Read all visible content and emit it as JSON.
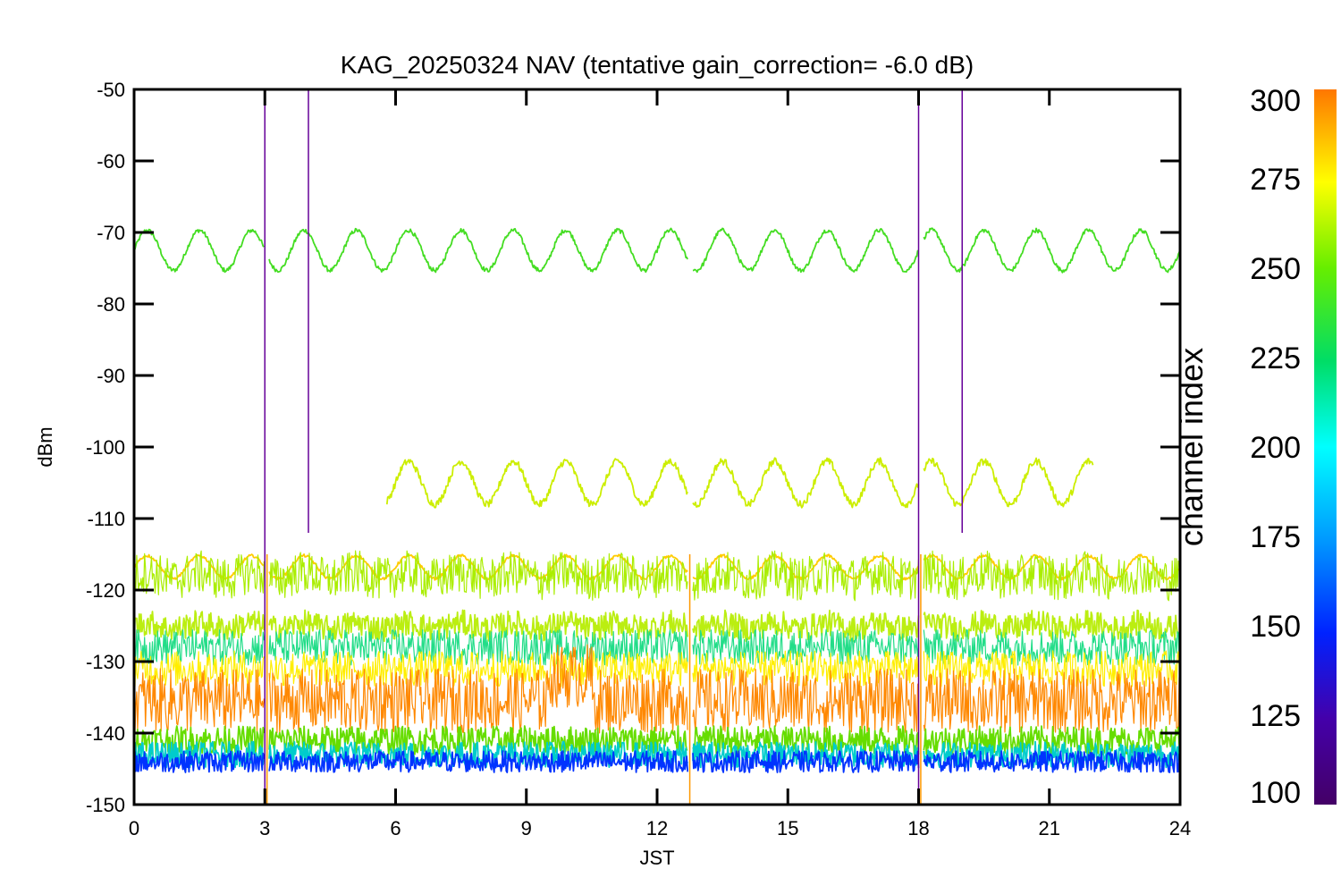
{
  "chart_data": {
    "type": "line",
    "title": "KAG_20250324 NAV (tentative gain_correction= -6.0 dB)",
    "xlabel": "JST",
    "ylabel": "dBm",
    "xlim": [
      0,
      24
    ],
    "ylim": [
      -150,
      -50
    ],
    "xticks": [
      0,
      3,
      6,
      9,
      12,
      15,
      18,
      21,
      24
    ],
    "yticks": [
      -50,
      -60,
      -70,
      -80,
      -90,
      -100,
      -110,
      -120,
      -130,
      -140,
      -150
    ],
    "grid": false,
    "legend": "none",
    "colorbar": {
      "title": "channel index",
      "range": [
        100,
        300
      ],
      "ticks": [
        100,
        125,
        150,
        175,
        200,
        225,
        250,
        275,
        300
      ]
    },
    "gaps_hours": [
      [
        3.0,
        3.1
      ],
      [
        12.7,
        12.8
      ],
      [
        18.0,
        18.1
      ]
    ],
    "series": [
      {
        "channel": 240,
        "color": "#44dd22",
        "start": 0,
        "end": 24,
        "mean": -72.5,
        "amplitude": 2.8,
        "period_hours": 1.2,
        "noise": 0.3
      },
      {
        "channel": 262,
        "color": "#ccee00",
        "start": 5.8,
        "end": 22.0,
        "mean": -105.0,
        "amplitude": 3.0,
        "period_hours": 1.2,
        "noise": 0.5
      },
      {
        "channel": 275,
        "color": "#ffcc00",
        "start": 0,
        "end": 24,
        "mean": -116.8,
        "amplitude": 1.6,
        "period_hours": 1.2,
        "noise": 0.2
      },
      {
        "channel": 255,
        "color": "#aaee00",
        "start": 0,
        "end": 24,
        "mean": -118.0,
        "amplitude": 0.5,
        "period_hours": 1.2,
        "noise": 3.0
      },
      {
        "channel": 258,
        "color": "#bbee11",
        "start": 0,
        "end": 24,
        "mean": -125.0,
        "amplitude": 0.4,
        "period_hours": 1.2,
        "noise": 1.8
      },
      {
        "channel": 210,
        "color": "#22dd88",
        "start": 0,
        "end": 24,
        "mean": -128.0,
        "amplitude": 0.0,
        "period_hours": 1.2,
        "noise": 2.5
      },
      {
        "channel": 280,
        "color": "#ffee00",
        "start": 0,
        "end": 24,
        "mean": -131.0,
        "amplitude": 0.0,
        "period_hours": 1.2,
        "noise": 2.5
      },
      {
        "channel": 295,
        "color": "#ff8800",
        "start": 0,
        "end": 24,
        "mean": -135.5,
        "amplitude": 0.0,
        "period_hours": 1.2,
        "noise": 4.5
      },
      {
        "channel": 230,
        "color": "#66dd00",
        "start": 0,
        "end": 24,
        "mean": -141.0,
        "amplitude": 0.0,
        "period_hours": 1.2,
        "noise": 2.0
      },
      {
        "channel": 180,
        "color": "#00cccc",
        "start": 0,
        "end": 24,
        "mean": -143.0,
        "amplitude": 0.0,
        "period_hours": 1.2,
        "noise": 1.8
      },
      {
        "channel": 130,
        "color": "#0033ff",
        "start": 0,
        "end": 24,
        "mean": -144.0,
        "amplitude": 0.0,
        "period_hours": 1.2,
        "noise": 1.5
      }
    ],
    "spikes": [
      {
        "channel": 115,
        "color": "#660099",
        "x": 3.0,
        "y_low": -150,
        "y_high": -50
      },
      {
        "channel": 115,
        "color": "#660099",
        "x": 4.0,
        "y_low": -112,
        "y_high": -50
      },
      {
        "channel": 115,
        "color": "#660099",
        "x": 18.0,
        "y_low": -150,
        "y_high": -50
      },
      {
        "channel": 115,
        "color": "#660099",
        "x": 19.0,
        "y_low": -112,
        "y_high": -50
      },
      {
        "channel": 290,
        "color": "#ff9900",
        "x": 3.05,
        "y_low": -150,
        "y_high": -115
      },
      {
        "channel": 290,
        "color": "#ff9900",
        "x": 12.75,
        "y_low": -150,
        "y_high": -115
      },
      {
        "channel": 290,
        "color": "#ff9900",
        "x": 18.05,
        "y_low": -150,
        "y_high": -115
      }
    ]
  }
}
